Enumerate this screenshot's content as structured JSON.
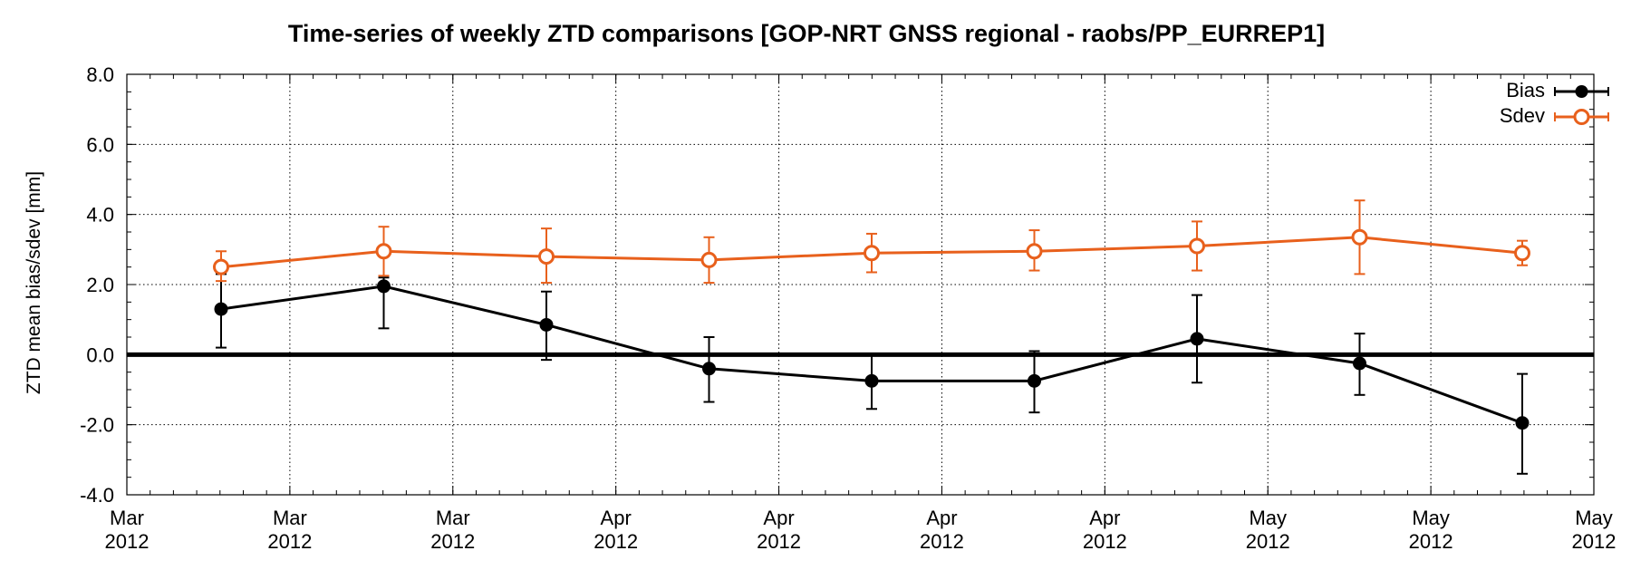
{
  "chart_data": {
    "type": "line",
    "title": "Time-series of weekly ZTD comparisons [GOP-NRT GNSS regional - raobs/PP_EURREP1]",
    "xlabel": "",
    "ylabel": "ZTD mean bias/sdev [mm]",
    "ylim": [
      -4.0,
      8.0
    ],
    "yticks": [
      "-4.0",
      "-2.0",
      "0.0",
      "2.0",
      "4.0",
      "6.0",
      "8.0"
    ],
    "xticks": [
      {
        "month": "Mar",
        "year": "2012"
      },
      {
        "month": "Mar",
        "year": "2012"
      },
      {
        "month": "Mar",
        "year": "2012"
      },
      {
        "month": "Apr",
        "year": "2012"
      },
      {
        "month": "Apr",
        "year": "2012"
      },
      {
        "month": "Apr",
        "year": "2012"
      },
      {
        "month": "Apr",
        "year": "2012"
      },
      {
        "month": "May",
        "year": "2012"
      },
      {
        "month": "May",
        "year": "2012"
      },
      {
        "month": "May",
        "year": "2012"
      }
    ],
    "grid": true,
    "legend_position": "top-right",
    "series": [
      {
        "name": "Bias",
        "color": "#000000",
        "marker": "filled-circle",
        "values": [
          1.3,
          1.95,
          0.85,
          -0.4,
          -0.75,
          -0.75,
          0.45,
          -0.25,
          -1.95
        ],
        "err_low": [
          0.2,
          0.75,
          -0.15,
          -1.35,
          -1.55,
          -1.65,
          -0.8,
          -1.15,
          -3.4
        ],
        "err_high": [
          2.3,
          2.2,
          1.8,
          0.5,
          0.0,
          0.1,
          1.7,
          0.6,
          -0.55
        ]
      },
      {
        "name": "Sdev",
        "color": "#e8601c",
        "marker": "open-circle",
        "values": [
          2.5,
          2.95,
          2.8,
          2.7,
          2.9,
          2.95,
          3.1,
          3.35,
          2.9
        ],
        "err_low": [
          2.1,
          2.25,
          2.05,
          2.05,
          2.35,
          2.4,
          2.4,
          2.3,
          2.55
        ],
        "err_high": [
          2.95,
          3.65,
          3.6,
          3.35,
          3.45,
          3.55,
          3.8,
          4.4,
          3.25
        ]
      }
    ]
  }
}
